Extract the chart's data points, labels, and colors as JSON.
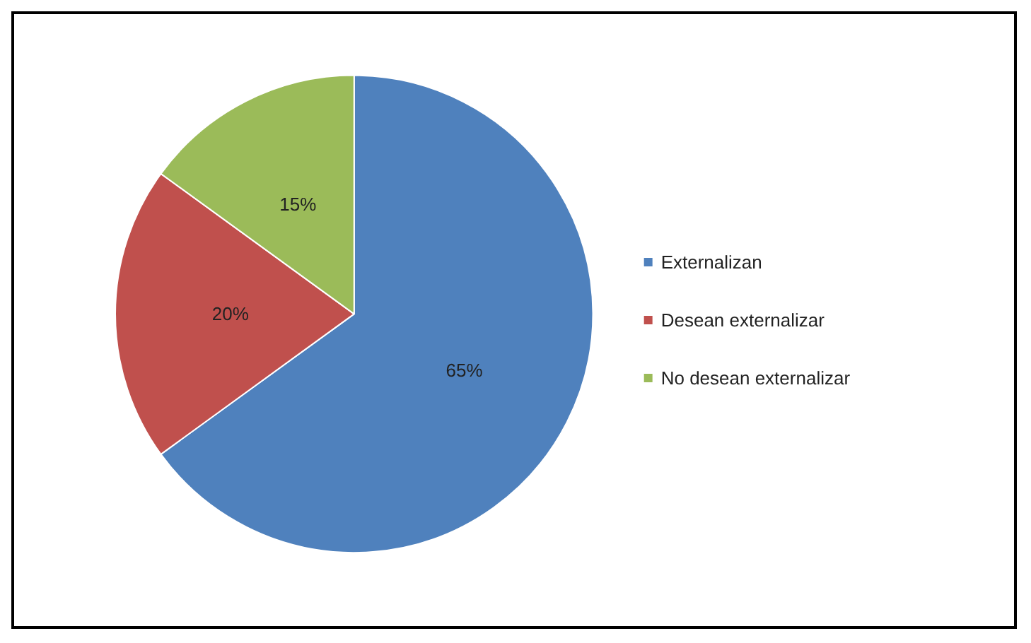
{
  "chart_data": {
    "type": "pie",
    "categories": [
      "Externalizan",
      "Desean externalizar",
      "No desean externalizar"
    ],
    "values": [
      65,
      20,
      15
    ],
    "colors": [
      "#4f81bd",
      "#c0504d",
      "#9bbb59"
    ],
    "value_labels": [
      "65%",
      "20%",
      "15%"
    ],
    "legend": "right"
  }
}
